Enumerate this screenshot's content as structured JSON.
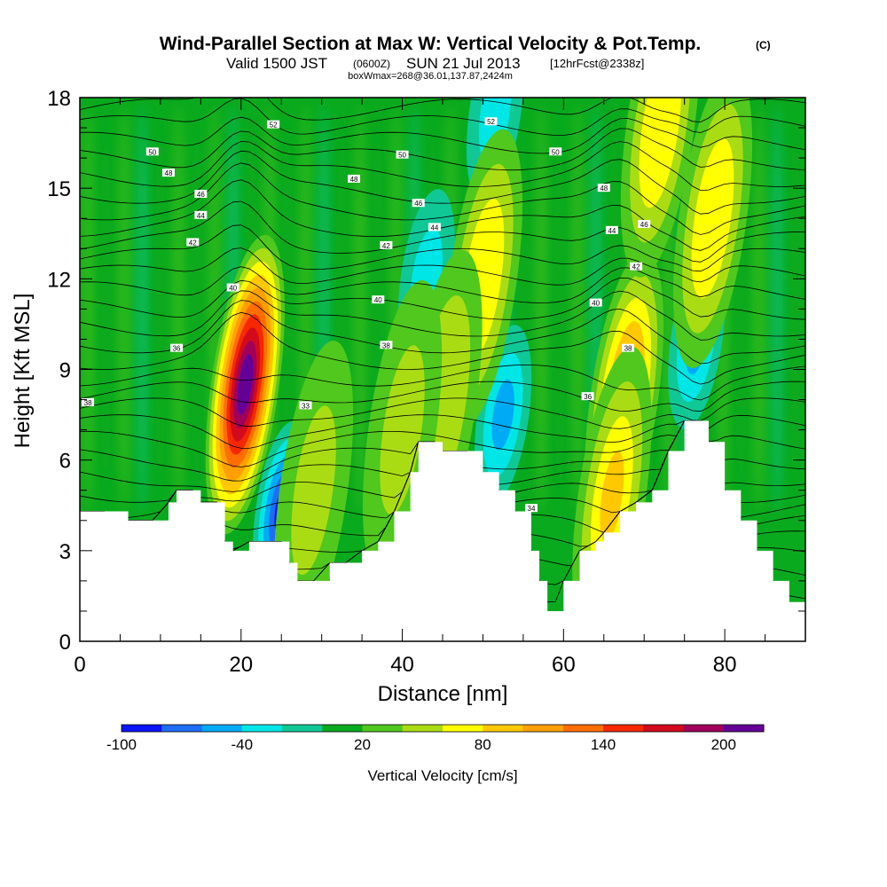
{
  "chart_data": {
    "type": "heatmap",
    "title": "Wind-Parallel Section at Max W: Vertical Velocity & Pot.Temp.",
    "title_mark": "(C)",
    "subtitle_line1": {
      "valid": "Valid 1500 JST",
      "utc": "(0600Z)",
      "date": "SUN 21 Jul 2013",
      "fcst": "[12hrFcst@2338z]"
    },
    "subtitle_line2": "boxWmax=268@36.01,137.87,2424m",
    "xlabel": "Distance [nm]",
    "ylabel": "Height [Kft MSL]",
    "xlim": [
      0,
      90
    ],
    "ylim": [
      0,
      18
    ],
    "x_ticks": [
      "0",
      "20",
      "40",
      "60",
      "80"
    ],
    "y_ticks": [
      "0",
      "3",
      "6",
      "9",
      "12",
      "15",
      "18"
    ],
    "colorbar": {
      "label": "Vertical Velocity [cm/s]",
      "tick_labels": [
        "-100",
        "-40",
        "20",
        "80",
        "140",
        "200"
      ],
      "levels": [
        -100,
        -80,
        -60,
        -40,
        -20,
        0,
        20,
        40,
        60,
        80,
        100,
        120,
        140,
        160,
        180,
        200,
        220
      ],
      "colors": [
        "#0a14f5",
        "#1e6ef5",
        "#00aaf5",
        "#00e6e6",
        "#10c896",
        "#0aaa1e",
        "#50c81e",
        "#aadc14",
        "#ffff00",
        "#ffc800",
        "#ffa000",
        "#ff6e00",
        "#f52800",
        "#d20a1e",
        "#a0005a",
        "#640096"
      ]
    },
    "terrain": [
      [
        0,
        4.3
      ],
      [
        3,
        4.3
      ],
      [
        6,
        4.0
      ],
      [
        9,
        4.0
      ],
      [
        11,
        4.6
      ],
      [
        12,
        5.0
      ],
      [
        14,
        5.0
      ],
      [
        15,
        4.6
      ],
      [
        17,
        4.6
      ],
      [
        18,
        3.3
      ],
      [
        19,
        3.0
      ],
      [
        21,
        3.3
      ],
      [
        25,
        3.3
      ],
      [
        26,
        2.6
      ],
      [
        27,
        2.0
      ],
      [
        29,
        2.0
      ],
      [
        31,
        2.6
      ],
      [
        33,
        2.6
      ],
      [
        35,
        3.0
      ],
      [
        37,
        3.3
      ],
      [
        39,
        4.3
      ],
      [
        41,
        5.6
      ],
      [
        42,
        6.6
      ],
      [
        44,
        6.6
      ],
      [
        45,
        6.3
      ],
      [
        48,
        6.3
      ],
      [
        50,
        5.6
      ],
      [
        52,
        5.0
      ],
      [
        54,
        4.3
      ],
      [
        56,
        3.0
      ],
      [
        57,
        2.0
      ],
      [
        58,
        1.0
      ],
      [
        59,
        1.0
      ],
      [
        60,
        2.0
      ],
      [
        62,
        3.0
      ],
      [
        64,
        3.3
      ],
      [
        65,
        3.6
      ],
      [
        67,
        4.3
      ],
      [
        69,
        4.6
      ],
      [
        71,
        5.0
      ],
      [
        73,
        6.3
      ],
      [
        75,
        7.3
      ],
      [
        77,
        7.3
      ],
      [
        78,
        6.6
      ],
      [
        80,
        5.0
      ],
      [
        82,
        4.0
      ],
      [
        84,
        3.0
      ],
      [
        86,
        2.0
      ],
      [
        88,
        1.3
      ],
      [
        90,
        1.0
      ]
    ],
    "updrafts": [
      {
        "x": 20.5,
        "y": 8.5,
        "w": 220
      },
      {
        "x": 67.5,
        "y": 8.0,
        "w": 110
      },
      {
        "x": 66.0,
        "y": 4.8,
        "w": 80
      },
      {
        "x": 50.0,
        "y": 12.0,
        "w": 75
      },
      {
        "x": 78.5,
        "y": 14.0,
        "w": 70
      },
      {
        "x": 72.0,
        "y": 17.0,
        "w": 65
      },
      {
        "x": 45.0,
        "y": 8.0,
        "w": 50
      },
      {
        "x": 40.0,
        "y": 7.0,
        "w": 40
      },
      {
        "x": 29.0,
        "y": 5.0,
        "w": 40
      }
    ],
    "downdrafts": [
      {
        "x": 25.0,
        "y": 4.3,
        "w": -95
      },
      {
        "x": 76.5,
        "y": 10.0,
        "w": -60
      },
      {
        "x": 52.5,
        "y": 7.5,
        "w": -45
      },
      {
        "x": 43.0,
        "y": 12.0,
        "w": -40
      },
      {
        "x": 51.5,
        "y": 17.5,
        "w": -40
      }
    ],
    "isentrope_labels": [
      {
        "x": 1,
        "y": 7.9,
        "t": "38"
      },
      {
        "x": 12,
        "y": 9.7,
        "t": "36"
      },
      {
        "x": 19,
        "y": 11.7,
        "t": "40"
      },
      {
        "x": 14,
        "y": 13.2,
        "t": "42"
      },
      {
        "x": 15,
        "y": 14.1,
        "t": "44"
      },
      {
        "x": 15,
        "y": 14.8,
        "t": "46"
      },
      {
        "x": 11,
        "y": 15.5,
        "t": "48"
      },
      {
        "x": 9,
        "y": 16.2,
        "t": "50"
      },
      {
        "x": 24,
        "y": 17.1,
        "t": "52"
      },
      {
        "x": 28,
        "y": 7.8,
        "t": "33"
      },
      {
        "x": 37,
        "y": 11.3,
        "t": "40"
      },
      {
        "x": 38,
        "y": 9.8,
        "t": "38"
      },
      {
        "x": 38,
        "y": 13.1,
        "t": "42"
      },
      {
        "x": 44,
        "y": 13.7,
        "t": "44"
      },
      {
        "x": 42,
        "y": 14.5,
        "t": "46"
      },
      {
        "x": 34,
        "y": 15.3,
        "t": "48"
      },
      {
        "x": 40,
        "y": 16.1,
        "t": "50"
      },
      {
        "x": 51,
        "y": 17.2,
        "t": "52"
      },
      {
        "x": 56,
        "y": 4.4,
        "t": "34"
      },
      {
        "x": 63,
        "y": 8.1,
        "t": "36"
      },
      {
        "x": 68,
        "y": 9.7,
        "t": "38"
      },
      {
        "x": 64,
        "y": 11.2,
        "t": "40"
      },
      {
        "x": 69,
        "y": 12.4,
        "t": "42"
      },
      {
        "x": 66,
        "y": 13.6,
        "t": "44"
      },
      {
        "x": 70,
        "y": 13.8,
        "t": "46"
      },
      {
        "x": 65,
        "y": 15.0,
        "t": "48"
      },
      {
        "x": 59,
        "y": 16.2,
        "t": "50"
      }
    ],
    "grid": false
  }
}
